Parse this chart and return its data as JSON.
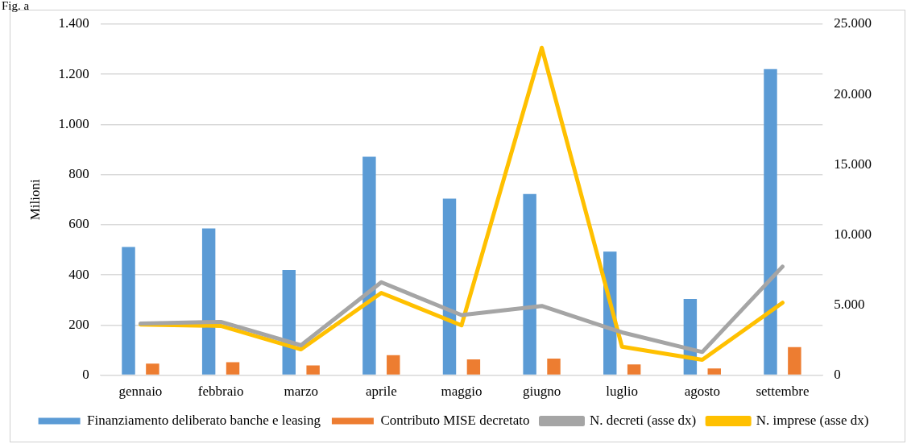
{
  "chart_data": {
    "type": "bar",
    "categories": [
      "gennaio",
      "febbraio",
      "marzo",
      "aprile",
      "maggio",
      "giugno",
      "luglio",
      "agosto",
      "settembre"
    ],
    "series": [
      {
        "name": "Finanziamento deliberato banche e leasing",
        "color": "#5b9bd5",
        "values": [
          511,
          585,
          420,
          871,
          704,
          723,
          493,
          304,
          1221
        ]
      },
      {
        "name": "Contributo MISE decretato",
        "color": "#ed7d31",
        "values": [
          46,
          52,
          39,
          80,
          63,
          66,
          43,
          27,
          112
        ]
      },
      {
        "name": "N. decreti (asse dx)",
        "type": "line",
        "axis": "y2",
        "color": "#a5a5a5",
        "values": [
          3680,
          3800,
          2130,
          6620,
          4280,
          4930,
          3050,
          1650,
          7730
        ]
      },
      {
        "name": "N. imprese (asse dx)",
        "type": "line",
        "axis": "y2",
        "color": "#ffc000",
        "values": [
          3610,
          3510,
          1840,
          5860,
          3550,
          23320,
          2030,
          1100,
          5160
        ]
      }
    ],
    "ylabel": "Milioni",
    "ylim": [
      0,
      1400
    ],
    "yticks": [
      0,
      200,
      400,
      600,
      800,
      {
        "value": 1000,
        "label": "1.000"
      },
      {
        "value": 1200,
        "label": "1.200"
      },
      {
        "value": 1400,
        "label": "1.400"
      }
    ],
    "y2lim": [
      0,
      25000
    ],
    "y2ticks": [
      0,
      {
        "value": 5000,
        "label": "5.000"
      },
      {
        "value": 10000,
        "label": "10.000"
      },
      {
        "value": 15000,
        "label": "15.000"
      },
      {
        "value": 20000,
        "label": "20.000"
      },
      {
        "value": 25000,
        "label": "25.000"
      }
    ],
    "grid": "y",
    "legend": "bottom",
    "marker": "none",
    "annotations": [
      "Fig. a"
    ]
  }
}
